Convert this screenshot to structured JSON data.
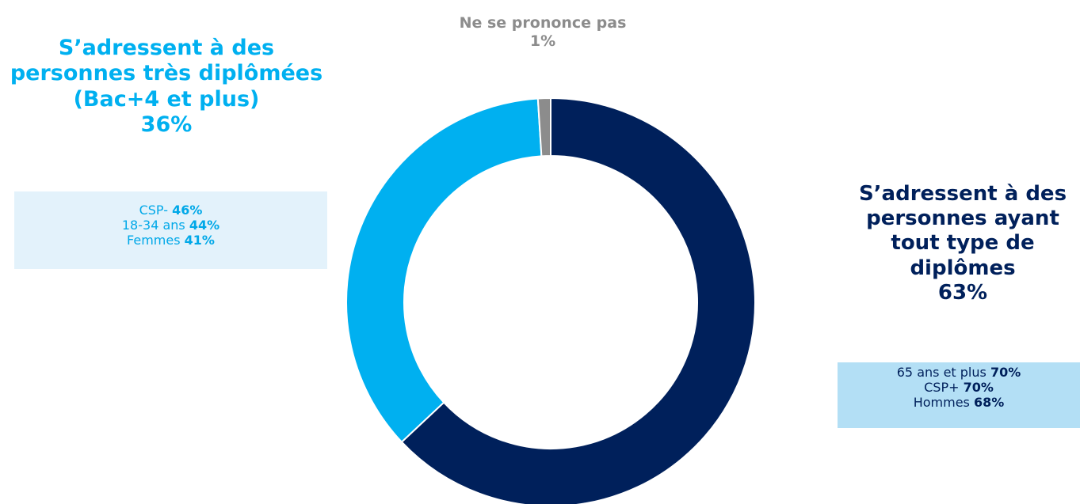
{
  "chart_data": {
    "type": "donut",
    "categories": [
      "S’adressent à des personnes ayant tout type de diplômes",
      "S’adressent à des personnes très diplômées (Bac+4 et plus)",
      "Ne se prononce pas"
    ],
    "values": [
      63,
      36,
      1
    ],
    "value_labels": [
      "63%",
      "36%",
      "1%"
    ],
    "colors": [
      "#00205b",
      "#00b0f0",
      "#8c8c8c"
    ],
    "details": [
      [
        {
          "label": "65 ans et plus",
          "value": "70%"
        },
        {
          "label": "CSP+",
          "value": "70%"
        },
        {
          "label": "Hommes",
          "value": "68%"
        }
      ],
      [
        {
          "label": "CSP-",
          "value": "46%"
        },
        {
          "label": "18-34 ans",
          "value": "44%"
        },
        {
          "label": "Femmes",
          "value": "41%"
        }
      ]
    ]
  }
}
